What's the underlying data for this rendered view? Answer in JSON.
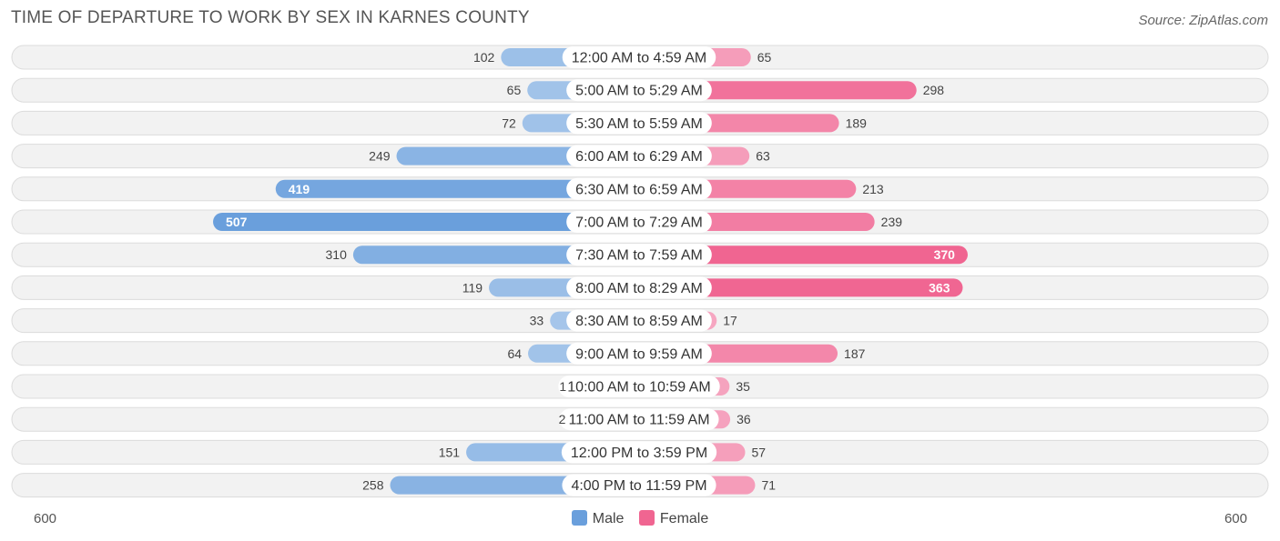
{
  "header": {
    "title": "TIME OF DEPARTURE TO WORK BY SEX IN KARNES COUNTY",
    "source": "Source: ZipAtlas.com"
  },
  "axis": {
    "left_label": "600",
    "right_label": "600"
  },
  "legend": {
    "male": "Male",
    "female": "Female"
  },
  "colors": {
    "male_light": "#a9c8eb",
    "male_dark": "#6a9fdc",
    "female_light": "#f6a9c3",
    "female_dark": "#f06591"
  },
  "chart_data": {
    "type": "bar",
    "orientation": "horizontal-diverging",
    "title": "TIME OF DEPARTURE TO WORK BY SEX IN KARNES COUNTY",
    "xlim": [
      -600,
      600
    ],
    "categories": [
      "12:00 AM to 4:59 AM",
      "5:00 AM to 5:29 AM",
      "5:30 AM to 5:59 AM",
      "6:00 AM to 6:29 AM",
      "6:30 AM to 6:59 AM",
      "7:00 AM to 7:29 AM",
      "7:30 AM to 7:59 AM",
      "8:00 AM to 8:29 AM",
      "8:30 AM to 8:59 AM",
      "9:00 AM to 9:59 AM",
      "10:00 AM to 10:59 AM",
      "11:00 AM to 11:59 AM",
      "12:00 PM to 3:59 PM",
      "4:00 PM to 11:59 PM"
    ],
    "series": [
      {
        "name": "Male",
        "values": [
          102,
          65,
          72,
          249,
          419,
          507,
          310,
          119,
          33,
          64,
          1,
          2,
          151,
          258
        ]
      },
      {
        "name": "Female",
        "values": [
          65,
          298,
          189,
          63,
          213,
          239,
          370,
          363,
          17,
          187,
          35,
          36,
          57,
          71
        ]
      }
    ],
    "legend_position": "bottom-center"
  }
}
